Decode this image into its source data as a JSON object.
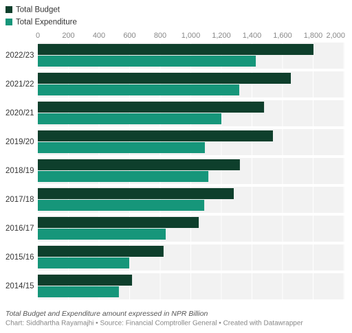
{
  "chart_data": {
    "type": "bar",
    "orientation": "horizontal",
    "categories": [
      "2022/23",
      "2021/22",
      "2020/21",
      "2019/20",
      "2018/19",
      "2017/18",
      "2016/17",
      "2015/16",
      "2014/15"
    ],
    "series": [
      {
        "name": "Total Budget",
        "color": "#0e3f2c",
        "values": [
          1802,
          1654,
          1479,
          1537,
          1321,
          1281,
          1052,
          822,
          616
        ]
      },
      {
        "name": "Total Expenditure",
        "color": "#16967a",
        "values": [
          1425,
          1317,
          1200,
          1092,
          1115,
          1088,
          836,
          598,
          530
        ]
      }
    ],
    "xlim": [
      0,
      2000
    ],
    "xticks": [
      0,
      200,
      400,
      600,
      800,
      {
        "value": 1000,
        "label": "1,000"
      },
      {
        "value": 1200,
        "label": "1,200"
      },
      {
        "value": 1400,
        "label": "1,400"
      },
      {
        "value": 1600,
        "label": "1,600"
      },
      {
        "value": 1800,
        "label": "1,800"
      },
      {
        "value": 2000,
        "label": "2,000"
      }
    ],
    "grid": true,
    "note": "Total Budget and Expenditure amount expressed in NPR Billion",
    "source": "Chart: Siddhartha Rayamajhi • Source: Financial Comptroller General • Created with Datawrapper"
  }
}
